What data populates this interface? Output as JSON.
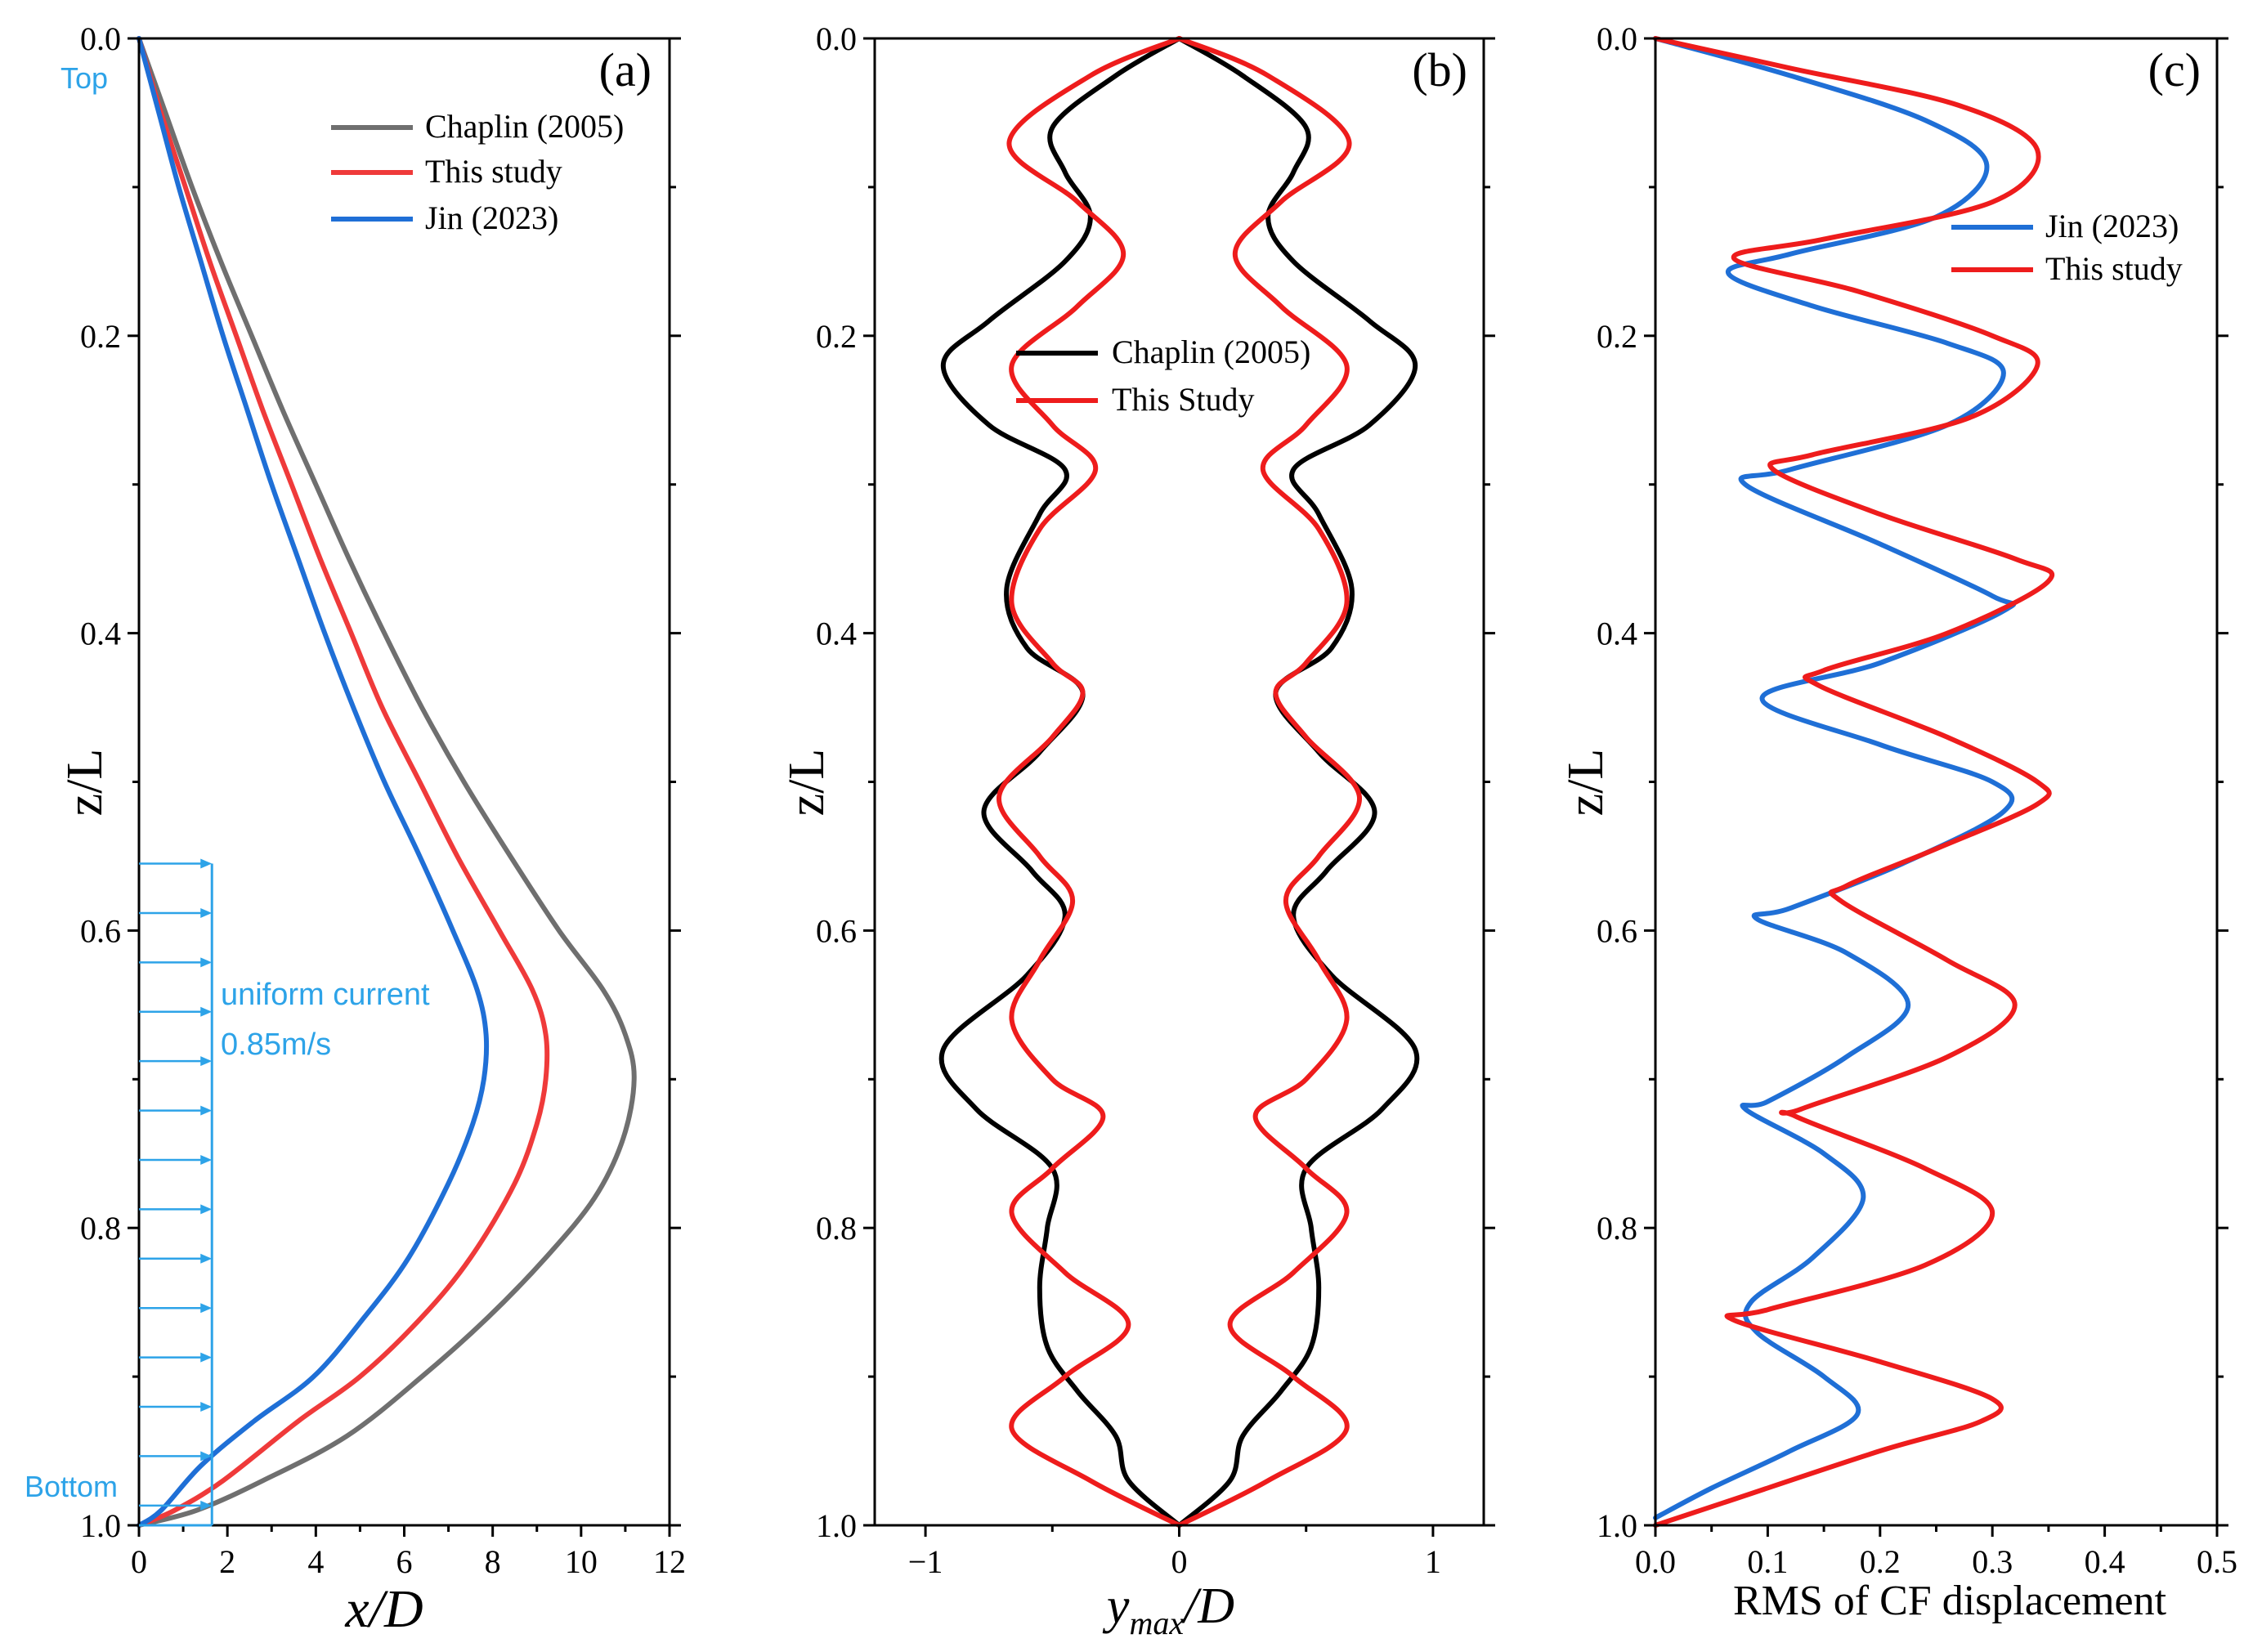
{
  "chart_data": [
    {
      "type": "line",
      "panel": "(a)",
      "xlabel": "x/D",
      "ylabel": "z/L",
      "xlim": [
        0,
        12
      ],
      "ylim": [
        0,
        1
      ],
      "y_inverted": true,
      "xticks": [
        "0",
        "2",
        "4",
        "6",
        "8",
        "10",
        "12"
      ],
      "yticks": [
        "0.0",
        "0.2",
        "0.4",
        "0.6",
        "0.8",
        "1.0"
      ],
      "legend": "top-right",
      "series": [
        {
          "name": "Chaplin (2005)",
          "color": "#6f6f6f",
          "points": [
            [
              0,
              0
            ],
            [
              0.6,
              0.05
            ],
            [
              1.2,
              0.1
            ],
            [
              1.85,
              0.15
            ],
            [
              2.55,
              0.2
            ],
            [
              3.25,
              0.25
            ],
            [
              4.0,
              0.3
            ],
            [
              4.75,
              0.35
            ],
            [
              5.55,
              0.4
            ],
            [
              6.4,
              0.45
            ],
            [
              7.35,
              0.5
            ],
            [
              8.4,
              0.55
            ],
            [
              9.5,
              0.6
            ],
            [
              10.5,
              0.64
            ],
            [
              11.0,
              0.67
            ],
            [
              11.2,
              0.7
            ],
            [
              10.95,
              0.74
            ],
            [
              10.3,
              0.78
            ],
            [
              9.2,
              0.82
            ],
            [
              7.9,
              0.86
            ],
            [
              6.4,
              0.9
            ],
            [
              4.7,
              0.94
            ],
            [
              2.8,
              0.97
            ],
            [
              1.3,
              0.99
            ],
            [
              0,
              1.0
            ]
          ]
        },
        {
          "name": "This study",
          "color": "#ef3a3a",
          "points": [
            [
              0,
              0
            ],
            [
              0.5,
              0.05
            ],
            [
              1.05,
              0.1
            ],
            [
              1.6,
              0.15
            ],
            [
              2.2,
              0.2
            ],
            [
              2.8,
              0.25
            ],
            [
              3.45,
              0.3
            ],
            [
              4.1,
              0.35
            ],
            [
              4.8,
              0.4
            ],
            [
              5.5,
              0.45
            ],
            [
              6.35,
              0.5
            ],
            [
              7.2,
              0.55
            ],
            [
              8.15,
              0.6
            ],
            [
              8.9,
              0.64
            ],
            [
              9.2,
              0.67
            ],
            [
              9.2,
              0.7
            ],
            [
              9.0,
              0.73
            ],
            [
              8.5,
              0.77
            ],
            [
              7.5,
              0.82
            ],
            [
              6.4,
              0.86
            ],
            [
              5.0,
              0.9
            ],
            [
              3.6,
              0.93
            ],
            [
              1.9,
              0.97
            ],
            [
              0.8,
              0.99
            ],
            [
              0,
              1.0
            ]
          ]
        },
        {
          "name": "Jin (2023)",
          "color": "#1f6fd6",
          "points": [
            [
              0,
              0
            ],
            [
              0.45,
              0.05
            ],
            [
              0.9,
              0.1
            ],
            [
              1.4,
              0.15
            ],
            [
              1.9,
              0.2
            ],
            [
              2.45,
              0.25
            ],
            [
              3.0,
              0.3
            ],
            [
              3.6,
              0.35
            ],
            [
              4.2,
              0.4
            ],
            [
              4.85,
              0.45
            ],
            [
              5.55,
              0.5
            ],
            [
              6.35,
              0.55
            ],
            [
              7.1,
              0.6
            ],
            [
              7.65,
              0.64
            ],
            [
              7.85,
              0.67
            ],
            [
              7.8,
              0.7
            ],
            [
              7.55,
              0.73
            ],
            [
              7.0,
              0.77
            ],
            [
              6.1,
              0.82
            ],
            [
              5.1,
              0.86
            ],
            [
              3.95,
              0.9
            ],
            [
              2.6,
              0.93
            ],
            [
              1.4,
              0.96
            ],
            [
              0.5,
              0.99
            ],
            [
              0,
              1.0
            ]
          ]
        }
      ],
      "annotations": {
        "top": "Top",
        "bottom": "Bottom",
        "current_label": "uniform current",
        "current_speed": "0.85m/s"
      }
    },
    {
      "type": "line",
      "panel": "(b)",
      "xlabel_main": "y",
      "xlabel_sub": "max",
      "xlabel_tail": "/D",
      "ylabel": "z/L",
      "xlim": [
        -1.2,
        1.2
      ],
      "ylim": [
        0,
        1
      ],
      "y_inverted": true,
      "xticks": [
        "−1",
        "0",
        "1"
      ],
      "yticks": [
        "0.0",
        "0.2",
        "0.4",
        "0.6",
        "0.8",
        "1.0"
      ],
      "legend": "upper-center",
      "symmetric": true,
      "series": [
        {
          "name": "Chaplin (2005)",
          "color": "#000000",
          "points": [
            [
              0,
              0
            ],
            [
              0.25,
              0.025
            ],
            [
              0.5,
              0.06
            ],
            [
              0.45,
              0.09
            ],
            [
              0.35,
              0.12
            ],
            [
              0.45,
              0.15
            ],
            [
              0.75,
              0.19
            ],
            [
              0.93,
              0.22
            ],
            [
              0.75,
              0.26
            ],
            [
              0.45,
              0.29
            ],
            [
              0.55,
              0.32
            ],
            [
              0.68,
              0.37
            ],
            [
              0.6,
              0.41
            ],
            [
              0.38,
              0.44
            ],
            [
              0.55,
              0.48
            ],
            [
              0.77,
              0.52
            ],
            [
              0.58,
              0.56
            ],
            [
              0.45,
              0.59
            ],
            [
              0.6,
              0.63
            ],
            [
              0.93,
              0.68
            ],
            [
              0.8,
              0.72
            ],
            [
              0.5,
              0.76
            ],
            [
              0.52,
              0.8
            ],
            [
              0.55,
              0.84
            ],
            [
              0.52,
              0.88
            ],
            [
              0.4,
              0.91
            ],
            [
              0.25,
              0.94
            ],
            [
              0.2,
              0.97
            ],
            [
              0,
              1.0
            ]
          ]
        },
        {
          "name": "This Study",
          "color": "#ee1c1c",
          "points": [
            [
              0,
              0
            ],
            [
              0.35,
              0.025
            ],
            [
              0.67,
              0.07
            ],
            [
              0.4,
              0.11
            ],
            [
              0.22,
              0.145
            ],
            [
              0.4,
              0.18
            ],
            [
              0.66,
              0.22
            ],
            [
              0.5,
              0.26
            ],
            [
              0.33,
              0.29
            ],
            [
              0.55,
              0.33
            ],
            [
              0.66,
              0.38
            ],
            [
              0.5,
              0.42
            ],
            [
              0.38,
              0.44
            ],
            [
              0.5,
              0.47
            ],
            [
              0.71,
              0.51
            ],
            [
              0.55,
              0.55
            ],
            [
              0.42,
              0.58
            ],
            [
              0.55,
              0.62
            ],
            [
              0.66,
              0.66
            ],
            [
              0.5,
              0.7
            ],
            [
              0.3,
              0.725
            ],
            [
              0.5,
              0.76
            ],
            [
              0.66,
              0.79
            ],
            [
              0.45,
              0.83
            ],
            [
              0.2,
              0.865
            ],
            [
              0.45,
              0.9
            ],
            [
              0.66,
              0.935
            ],
            [
              0.35,
              0.97
            ],
            [
              0,
              1.0
            ]
          ]
        }
      ]
    },
    {
      "type": "line",
      "panel": "(c)",
      "xlabel": "RMS of CF displacement",
      "ylabel": "z/L",
      "xlim": [
        0,
        0.5
      ],
      "ylim": [
        0,
        1
      ],
      "y_inverted": true,
      "xticks": [
        "0.0",
        "0.1",
        "0.2",
        "0.3",
        "0.4",
        "0.5"
      ],
      "yticks": [
        "0.0",
        "0.2",
        "0.4",
        "0.6",
        "0.8",
        "1.0"
      ],
      "legend": "upper-right",
      "series": [
        {
          "name": "Jin (2023)",
          "color": "#1f6fd6",
          "points": [
            [
              0,
              0
            ],
            [
              0.12,
              0.025
            ],
            [
              0.24,
              0.055
            ],
            [
              0.295,
              0.085
            ],
            [
              0.25,
              0.12
            ],
            [
              0.12,
              0.145
            ],
            [
              0.065,
              0.158
            ],
            [
              0.14,
              0.18
            ],
            [
              0.26,
              0.205
            ],
            [
              0.31,
              0.225
            ],
            [
              0.26,
              0.26
            ],
            [
              0.12,
              0.29
            ],
            [
              0.08,
              0.3
            ],
            [
              0.2,
              0.34
            ],
            [
              0.3,
              0.375
            ],
            [
              0.31,
              0.385
            ],
            [
              0.2,
              0.42
            ],
            [
              0.095,
              0.444
            ],
            [
              0.2,
              0.475
            ],
            [
              0.3,
              0.5
            ],
            [
              0.31,
              0.52
            ],
            [
              0.22,
              0.555
            ],
            [
              0.12,
              0.585
            ],
            [
              0.09,
              0.592
            ],
            [
              0.17,
              0.615
            ],
            [
              0.225,
              0.65
            ],
            [
              0.17,
              0.685
            ],
            [
              0.1,
              0.715
            ],
            [
              0.08,
              0.72
            ],
            [
              0.15,
              0.75
            ],
            [
              0.185,
              0.78
            ],
            [
              0.14,
              0.82
            ],
            [
              0.085,
              0.85
            ],
            [
              0.09,
              0.87
            ],
            [
              0.15,
              0.9
            ],
            [
              0.18,
              0.925
            ],
            [
              0.12,
              0.95
            ],
            [
              0.05,
              0.975
            ],
            [
              0,
              0.995
            ]
          ]
        },
        {
          "name": "This study",
          "color": "#ee1c1c",
          "points": [
            [
              0,
              0
            ],
            [
              0.12,
              0.02
            ],
            [
              0.27,
              0.045
            ],
            [
              0.34,
              0.075
            ],
            [
              0.3,
              0.11
            ],
            [
              0.15,
              0.135
            ],
            [
              0.07,
              0.148
            ],
            [
              0.18,
              0.17
            ],
            [
              0.3,
              0.2
            ],
            [
              0.34,
              0.22
            ],
            [
              0.28,
              0.255
            ],
            [
              0.14,
              0.28
            ],
            [
              0.105,
              0.29
            ],
            [
              0.2,
              0.32
            ],
            [
              0.32,
              0.35
            ],
            [
              0.35,
              0.365
            ],
            [
              0.26,
              0.4
            ],
            [
              0.15,
              0.425
            ],
            [
              0.145,
              0.435
            ],
            [
              0.26,
              0.47
            ],
            [
              0.34,
              0.5
            ],
            [
              0.34,
              0.515
            ],
            [
              0.25,
              0.545
            ],
            [
              0.17,
              0.57
            ],
            [
              0.165,
              0.58
            ],
            [
              0.26,
              0.62
            ],
            [
              0.32,
              0.65
            ],
            [
              0.26,
              0.685
            ],
            [
              0.13,
              0.72
            ],
            [
              0.125,
              0.725
            ],
            [
              0.24,
              0.76
            ],
            [
              0.3,
              0.79
            ],
            [
              0.24,
              0.825
            ],
            [
              0.1,
              0.855
            ],
            [
              0.07,
              0.862
            ],
            [
              0.2,
              0.89
            ],
            [
              0.3,
              0.915
            ],
            [
              0.29,
              0.93
            ],
            [
              0.2,
              0.95
            ],
            [
              0.06,
              0.985
            ],
            [
              0,
              1.0
            ]
          ]
        }
      ]
    }
  ]
}
